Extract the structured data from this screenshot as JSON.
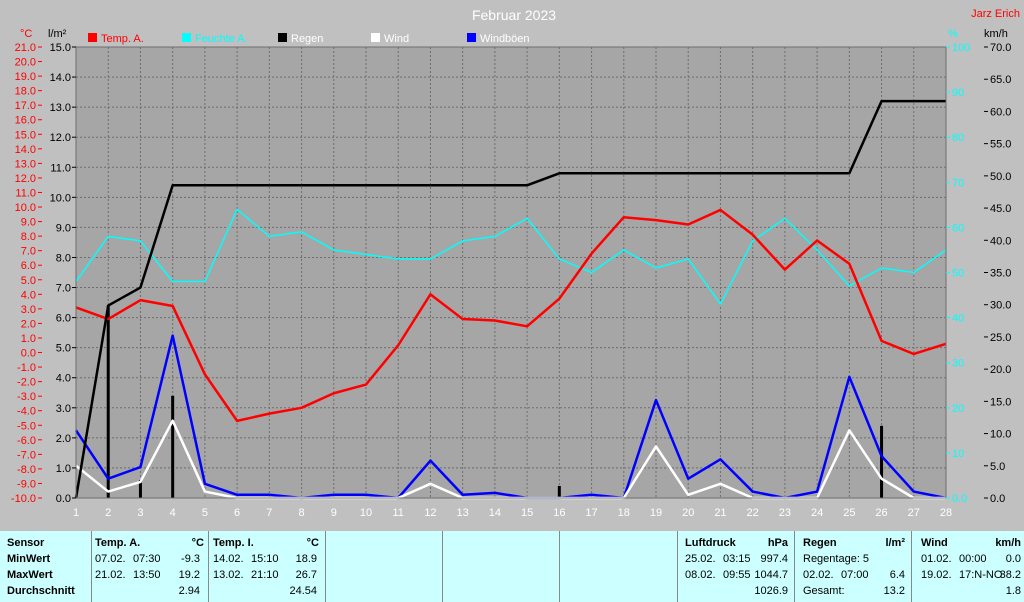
{
  "chart_data": {
    "type": "line",
    "title": "Februar 2023",
    "author": "Jarz Erich",
    "x": [
      1,
      2,
      3,
      4,
      5,
      6,
      7,
      8,
      9,
      10,
      11,
      12,
      13,
      14,
      15,
      16,
      17,
      18,
      19,
      20,
      21,
      22,
      23,
      24,
      25,
      26,
      27,
      28
    ],
    "xlim": [
      1,
      28
    ],
    "axes": {
      "temp": {
        "unit": "°C",
        "ylim": [
          -10,
          21
        ],
        "ticks": [
          21,
          20,
          19,
          18,
          17,
          16,
          15,
          14,
          13,
          12,
          11,
          10,
          9,
          8,
          7,
          6,
          5,
          4,
          3,
          2,
          1,
          0,
          -1,
          -2,
          -3,
          -4,
          -5,
          -6,
          -7,
          -8,
          -9,
          -10
        ],
        "tick_labels": [
          "21.0",
          "20.0",
          "19.0",
          "18.0",
          "17.0",
          "16.0",
          "15.0",
          "14.0",
          "13.0",
          "12.0",
          "11.0",
          "10.0",
          "9.0",
          "8.0",
          "7.0",
          "6.0",
          "5.0",
          "4.0",
          "3.0",
          "2.0",
          "1.0",
          "0.0",
          "-1.0",
          "-2.0",
          "-3.0",
          "-4.0",
          "-5.0",
          "-6.0",
          "-7.0",
          "-8.0",
          "-9.0",
          "-10.0"
        ]
      },
      "rain": {
        "unit": "l/m²",
        "ylim": [
          0,
          15
        ],
        "ticks": [
          15,
          14,
          13,
          12,
          11,
          10,
          9,
          8,
          7,
          6,
          5,
          4,
          3,
          2,
          1,
          0
        ],
        "tick_labels": [
          "15.0",
          "14.0",
          "13.0",
          "12.0",
          "11.0",
          "10.0",
          "9.0",
          "8.0",
          "7.0",
          "6.0",
          "5.0",
          "4.0",
          "3.0",
          "2.0",
          "1.0",
          "0.0"
        ]
      },
      "humidity": {
        "unit": "%",
        "ylim": [
          0,
          100
        ],
        "ticks": [
          100,
          90,
          80,
          70,
          60,
          50,
          40,
          30,
          20,
          10,
          0
        ],
        "tick_labels": [
          "100",
          "90",
          "80",
          "70",
          "60",
          "50",
          "40",
          "30",
          "20",
          "10",
          "0.0"
        ]
      },
      "wind": {
        "unit": "km/h",
        "ylim": [
          0,
          70
        ],
        "ticks": [
          70,
          65,
          60,
          55,
          50,
          45,
          40,
          35,
          30,
          25,
          20,
          15,
          10,
          5,
          0
        ],
        "tick_labels": [
          "70.0",
          "65.0",
          "60.0",
          "55.0",
          "50.0",
          "45.0",
          "40.0",
          "35.0",
          "30.0",
          "25.0",
          "20.0",
          "15.0",
          "10.0",
          "5.0",
          "0.0"
        ]
      }
    },
    "legend": [
      {
        "name": "Temp. A.",
        "color": "#ff0000"
      },
      {
        "name": "Feuchte A.",
        "color": "#00ffff"
      },
      {
        "name": "Regen",
        "color": "#000000"
      },
      {
        "name": "Wind",
        "color": "#ffffff"
      },
      {
        "name": "Windböen",
        "color": "#0000ff"
      }
    ],
    "series": [
      {
        "name": "Temp. A.",
        "axis": "temp",
        "color": "#ff0000",
        "values": [
          3.1,
          2.3,
          3.6,
          3.2,
          -1.5,
          -4.7,
          -4.2,
          -3.8,
          -2.8,
          -2.2,
          0.5,
          4.0,
          2.3,
          2.2,
          1.8,
          3.7,
          6.8,
          9.3,
          9.1,
          8.8,
          9.8,
          8.1,
          5.7,
          7.7,
          6.1,
          0.8,
          -0.1,
          0.6
        ]
      },
      {
        "name": "Feuchte A.",
        "axis": "humidity",
        "color": "#00ffff",
        "values": [
          48,
          58,
          57,
          48,
          48,
          64,
          58,
          59,
          55,
          54,
          53,
          53,
          57,
          58,
          62,
          53,
          50,
          55,
          51,
          53,
          43,
          57,
          62,
          55,
          47,
          51,
          50,
          55
        ]
      },
      {
        "name": "Regen",
        "axis": "rain",
        "color": "#000000",
        "values": [
          0,
          6.4,
          7.0,
          10.4,
          10.4,
          10.4,
          10.4,
          10.4,
          10.4,
          10.4,
          10.4,
          10.4,
          10.4,
          10.4,
          10.4,
          10.8,
          10.8,
          10.8,
          10.8,
          10.8,
          10.8,
          10.8,
          10.8,
          10.8,
          10.8,
          13.2,
          13.2,
          13.2
        ],
        "daily_bars": [
          0,
          6.4,
          0.6,
          3.4,
          0,
          0,
          0,
          0,
          0,
          0,
          0,
          0,
          0,
          0,
          0,
          0.4,
          0,
          0,
          0,
          0,
          0,
          0,
          0,
          0,
          0,
          2.4,
          0,
          0
        ]
      },
      {
        "name": "Wind",
        "axis": "wind",
        "color": "#ffffff",
        "values": [
          5,
          1,
          2.5,
          12,
          1,
          0,
          0,
          0,
          0,
          0,
          0,
          2.2,
          0,
          0,
          0,
          0,
          0,
          0,
          8,
          0.5,
          2.2,
          0,
          0,
          0,
          10.5,
          3,
          0,
          0
        ]
      },
      {
        "name": "Windböen",
        "axis": "wind",
        "color": "#0000ff",
        "values": [
          10.5,
          3,
          4.8,
          25.2,
          2.2,
          0.5,
          0.5,
          0,
          0.5,
          0.5,
          0,
          5.8,
          0.5,
          0.8,
          0,
          0,
          0.5,
          0,
          15.2,
          3,
          6,
          1,
          0,
          1,
          18.8,
          6.5,
          1,
          0
        ]
      }
    ],
    "grid": true
  },
  "summary": {
    "sensor": {
      "title": "Sensor",
      "rows": [
        "MinWert",
        "MaxWert",
        "Durchschnitt"
      ]
    },
    "temp_a": {
      "title": "Temp. A.",
      "unit": "°C",
      "min_date": "07.02.",
      "min_time": "07:30",
      "min_value": "-9.3",
      "max_date": "21.02.",
      "max_time": "13:50",
      "max_value": "19.2",
      "avg_value": "2.94"
    },
    "temp_i": {
      "title": "Temp. I.",
      "unit": "°C",
      "min_date": "14.02.",
      "min_time": "15:10",
      "min_value": "18.9",
      "max_date": "13.02.",
      "max_time": "21:10",
      "max_value": "26.7",
      "avg_value": "24.54"
    },
    "luftdruck": {
      "title": "Luftdruck",
      "unit": "hPa",
      "min_date": "25.02.",
      "min_time": "03:15",
      "min_value": "997.4",
      "max_date": "08.02.",
      "max_time": "09:55",
      "max_value": "1044.7",
      "avg_value": "1026.9"
    },
    "regen": {
      "title": "Regen",
      "unit": "l/m²",
      "regentage": "Regentage: 5",
      "max_date": "02.02.",
      "max_time": "07:00",
      "max_value": "6.4",
      "gesamt_label": "Gesamt:",
      "gesamt_value": "13.2"
    },
    "wind": {
      "title": "Wind",
      "unit": "km/h",
      "min_date": "01.02.",
      "min_time": "00:00",
      "min_value": "0.0",
      "max_date": "19.02.",
      "max_time": "17:N-NO",
      "max_value": "38.2",
      "avg_value": "1.8"
    }
  }
}
